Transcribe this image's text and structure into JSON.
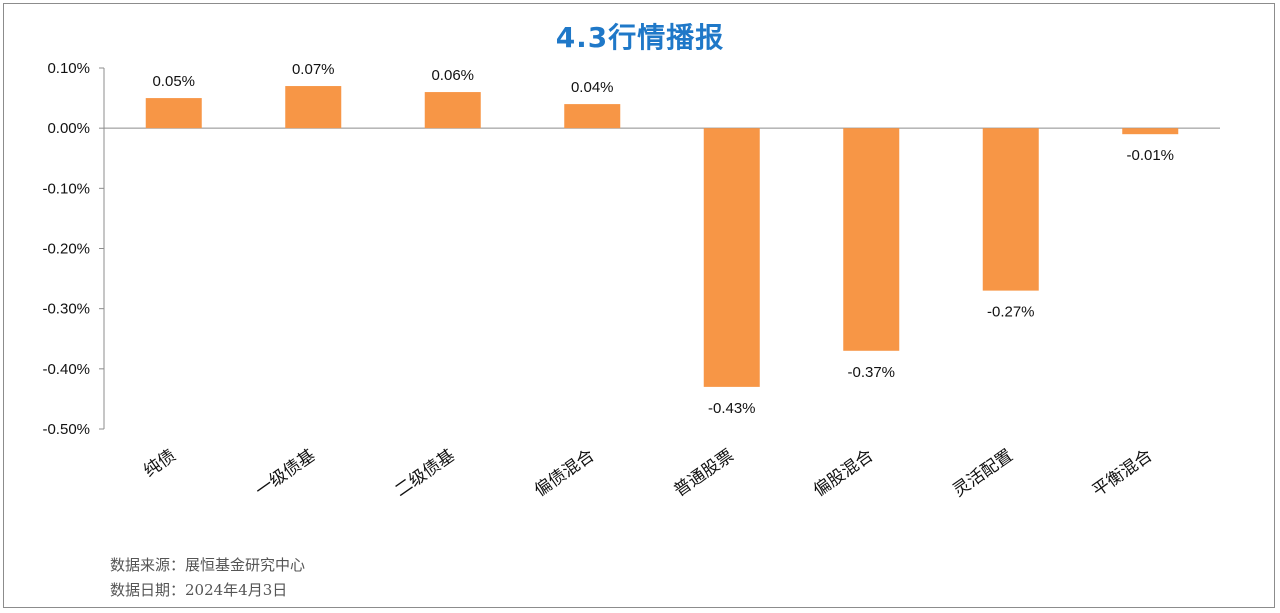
{
  "chart_data": {
    "type": "bar",
    "title": "4.3行情播报",
    "categories": [
      "纯债",
      "一级债基",
      "二级债基",
      "偏债混合",
      "普通股票",
      "偏股混合",
      "灵活配置",
      "平衡混合"
    ],
    "values": [
      0.05,
      0.07,
      0.06,
      0.04,
      -0.43,
      -0.37,
      -0.27,
      -0.01
    ],
    "data_labels": [
      "0.05%",
      "0.07%",
      "0.06%",
      "0.04%",
      "-0.43%",
      "-0.37%",
      "-0.27%",
      "-0.01%"
    ],
    "ylim": [
      -0.5,
      0.1
    ],
    "yticks": [
      0.1,
      0.0,
      -0.1,
      -0.2,
      -0.3,
      -0.4,
      -0.5
    ],
    "ytick_labels": [
      "0.10%",
      "0.00%",
      "-0.10%",
      "-0.20%",
      "-0.30%",
      "-0.40%",
      "-0.50%"
    ],
    "unit": "%",
    "grid": false,
    "legend": "none",
    "bar_color": "#f79646"
  },
  "footer": {
    "source": "数据来源：展恒基金研究中心",
    "date": "数据日期：2024年4月3日"
  }
}
